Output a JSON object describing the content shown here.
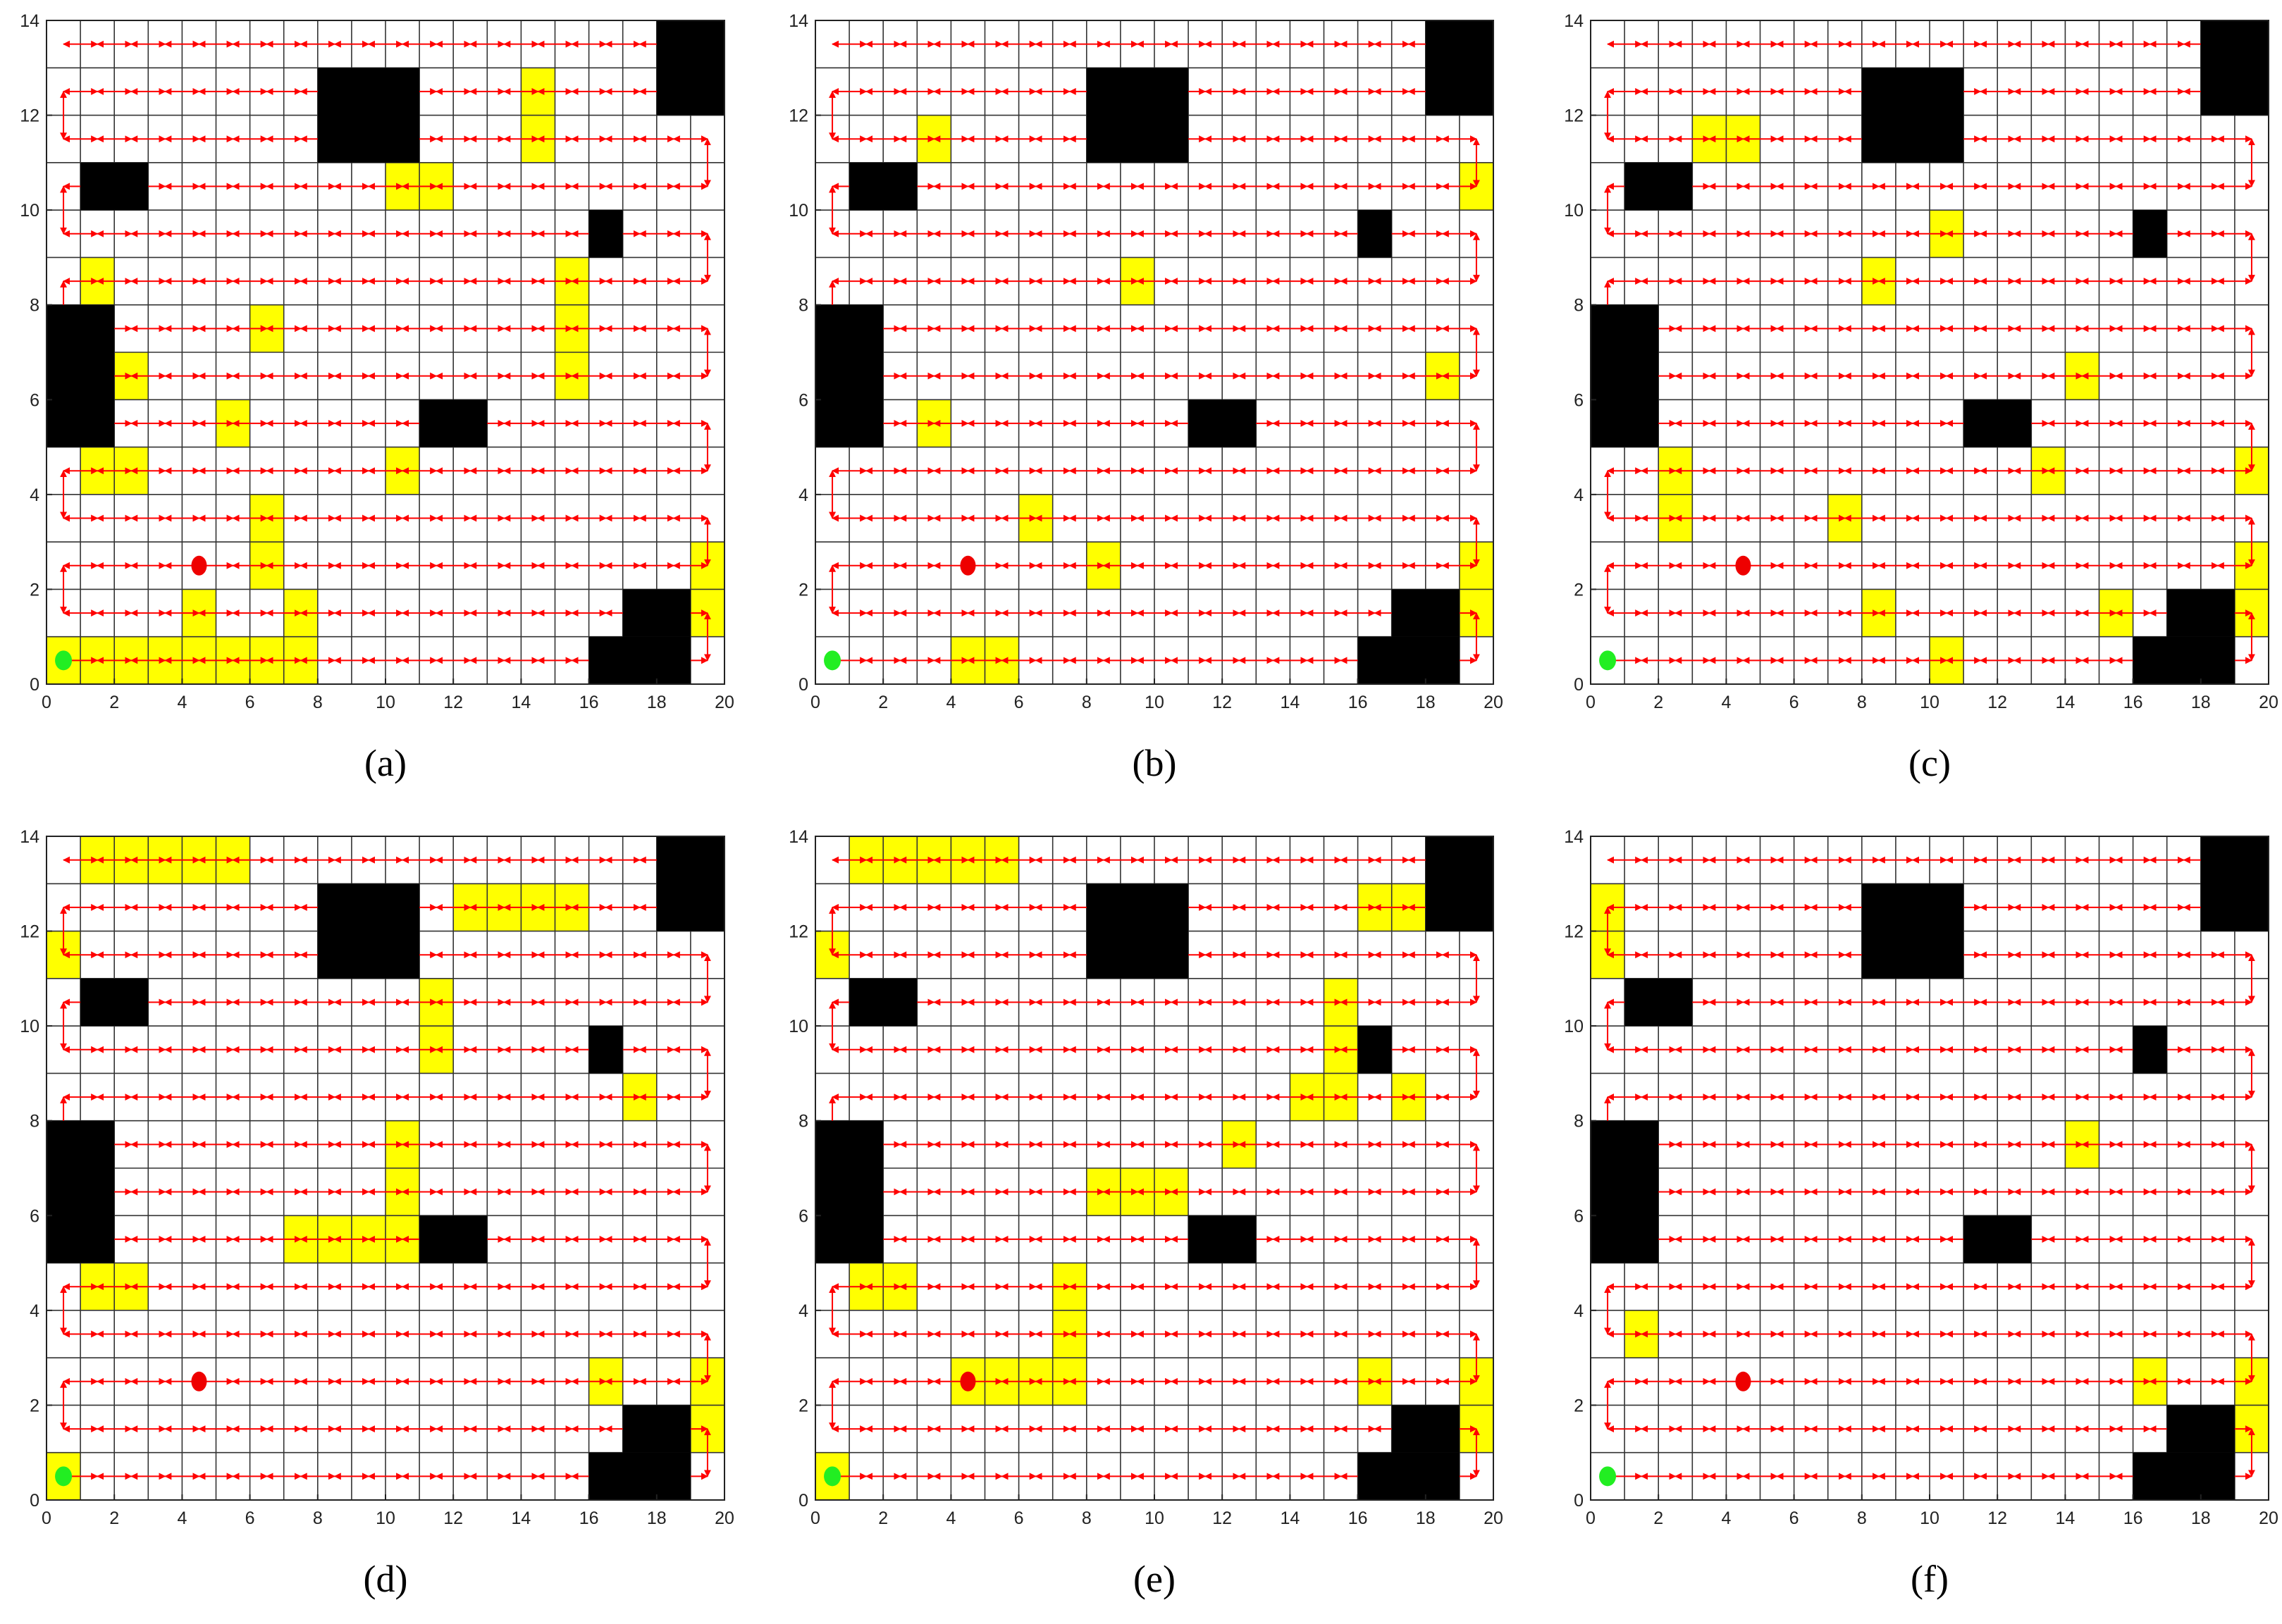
{
  "panels": [
    {
      "label": "(a)",
      "xlim": [
        0,
        20
      ],
      "ylim": [
        0,
        14
      ],
      "xticks": [
        0,
        2,
        4,
        6,
        8,
        10,
        12,
        14,
        16,
        18,
        20
      ],
      "yticks": [
        0,
        2,
        4,
        6,
        8,
        10,
        12,
        14
      ],
      "obstacles": [
        [
          8,
          11,
          11,
          13
        ],
        [
          18,
          12,
          20,
          14
        ],
        [
          1,
          10,
          3,
          11
        ],
        [
          16,
          9,
          17,
          10
        ],
        [
          0,
          5,
          2,
          8
        ],
        [
          11,
          5,
          13,
          6
        ],
        [
          16,
          0,
          19,
          1
        ],
        [
          17,
          1,
          19,
          2
        ]
      ],
      "highlighted": [
        [
          0,
          0
        ],
        [
          1,
          0
        ],
        [
          2,
          0
        ],
        [
          3,
          0
        ],
        [
          4,
          0
        ],
        [
          5,
          0
        ],
        [
          6,
          0
        ],
        [
          7,
          0
        ],
        [
          4,
          1
        ],
        [
          7,
          1
        ],
        [
          6,
          2
        ],
        [
          6,
          3
        ],
        [
          1,
          4
        ],
        [
          2,
          4
        ],
        [
          5,
          5
        ],
        [
          10,
          4
        ],
        [
          2,
          6
        ],
        [
          6,
          7
        ],
        [
          1,
          8
        ],
        [
          15,
          6
        ],
        [
          15,
          7
        ],
        [
          15,
          8
        ],
        [
          10,
          10
        ],
        [
          11,
          10
        ],
        [
          14,
          11
        ],
        [
          14,
          12
        ],
        [
          19,
          1
        ],
        [
          19,
          2
        ]
      ],
      "start": [
        0.5,
        0.5
      ],
      "goal": [
        4.5,
        2.5
      ]
    },
    {
      "label": "(b)",
      "xlim": [
        0,
        20
      ],
      "ylim": [
        0,
        14
      ],
      "xticks": [
        0,
        2,
        4,
        6,
        8,
        10,
        12,
        14,
        16,
        18,
        20
      ],
      "yticks": [
        0,
        2,
        4,
        6,
        8,
        10,
        12,
        14
      ],
      "obstacles": [
        [
          8,
          11,
          11,
          13
        ],
        [
          18,
          12,
          20,
          14
        ],
        [
          1,
          10,
          3,
          11
        ],
        [
          16,
          9,
          17,
          10
        ],
        [
          0,
          5,
          2,
          8
        ],
        [
          11,
          5,
          13,
          6
        ],
        [
          16,
          0,
          19,
          1
        ],
        [
          17,
          1,
          19,
          2
        ]
      ],
      "highlighted": [
        [
          4,
          0
        ],
        [
          5,
          0
        ],
        [
          8,
          2
        ],
        [
          6,
          3
        ],
        [
          3,
          5
        ],
        [
          18,
          6
        ],
        [
          9,
          8
        ],
        [
          3,
          11
        ],
        [
          19,
          10
        ],
        [
          19,
          1
        ],
        [
          19,
          2
        ]
      ],
      "start": [
        0.5,
        0.5
      ],
      "goal": [
        4.5,
        2.5
      ]
    },
    {
      "label": "(c)",
      "xlim": [
        0,
        20
      ],
      "ylim": [
        0,
        14
      ],
      "xticks": [
        0,
        2,
        4,
        6,
        8,
        10,
        12,
        14,
        16,
        18,
        20
      ],
      "yticks": [
        0,
        2,
        4,
        6,
        8,
        10,
        12,
        14
      ],
      "obstacles": [
        [
          8,
          11,
          11,
          13
        ],
        [
          18,
          12,
          20,
          14
        ],
        [
          1,
          10,
          3,
          11
        ],
        [
          16,
          9,
          17,
          10
        ],
        [
          0,
          5,
          2,
          8
        ],
        [
          11,
          5,
          13,
          6
        ],
        [
          16,
          0,
          19,
          1
        ],
        [
          17,
          1,
          19,
          2
        ]
      ],
      "highlighted": [
        [
          2,
          3
        ],
        [
          2,
          4
        ],
        [
          7,
          3
        ],
        [
          8,
          1
        ],
        [
          10,
          0
        ],
        [
          15,
          1
        ],
        [
          19,
          1
        ],
        [
          19,
          2
        ],
        [
          19,
          4
        ],
        [
          13,
          4
        ],
        [
          14,
          6
        ],
        [
          8,
          8
        ],
        [
          10,
          9
        ],
        [
          3,
          11
        ],
        [
          4,
          11
        ]
      ],
      "start": [
        0.5,
        0.5
      ],
      "goal": [
        4.5,
        2.5
      ]
    },
    {
      "label": "(d)",
      "xlim": [
        0,
        20
      ],
      "ylim": [
        0,
        14
      ],
      "xticks": [
        0,
        2,
        4,
        6,
        8,
        10,
        12,
        14,
        16,
        18,
        20
      ],
      "yticks": [
        0,
        2,
        4,
        6,
        8,
        10,
        12,
        14
      ],
      "obstacles": [
        [
          8,
          11,
          11,
          13
        ],
        [
          18,
          12,
          20,
          14
        ],
        [
          1,
          10,
          3,
          11
        ],
        [
          16,
          9,
          17,
          10
        ],
        [
          0,
          5,
          2,
          8
        ],
        [
          11,
          5,
          13,
          6
        ],
        [
          16,
          0,
          19,
          1
        ],
        [
          17,
          1,
          19,
          2
        ]
      ],
      "highlighted": [
        [
          0,
          0
        ],
        [
          1,
          4
        ],
        [
          2,
          4
        ],
        [
          7,
          5
        ],
        [
          8,
          5
        ],
        [
          9,
          5
        ],
        [
          10,
          5
        ],
        [
          10,
          6
        ],
        [
          10,
          7
        ],
        [
          11,
          9
        ],
        [
          11,
          10
        ],
        [
          17,
          8
        ],
        [
          0,
          11
        ],
        [
          12,
          12
        ],
        [
          13,
          12
        ],
        [
          14,
          12
        ],
        [
          15,
          12
        ],
        [
          1,
          13
        ],
        [
          2,
          13
        ],
        [
          3,
          13
        ],
        [
          4,
          13
        ],
        [
          5,
          13
        ],
        [
          16,
          2
        ],
        [
          19,
          2
        ],
        [
          19,
          1
        ]
      ],
      "start": [
        0.5,
        0.5
      ],
      "goal": [
        4.5,
        2.5
      ]
    },
    {
      "label": "(e)",
      "xlim": [
        0,
        20
      ],
      "ylim": [
        0,
        14
      ],
      "xticks": [
        0,
        2,
        4,
        6,
        8,
        10,
        12,
        14,
        16,
        18,
        20
      ],
      "yticks": [
        0,
        2,
        4,
        6,
        8,
        10,
        12,
        14
      ],
      "obstacles": [
        [
          8,
          11,
          11,
          13
        ],
        [
          18,
          12,
          20,
          14
        ],
        [
          1,
          10,
          3,
          11
        ],
        [
          16,
          9,
          17,
          10
        ],
        [
          0,
          5,
          2,
          8
        ],
        [
          11,
          5,
          13,
          6
        ],
        [
          16,
          0,
          19,
          1
        ],
        [
          17,
          1,
          19,
          2
        ]
      ],
      "highlighted": [
        [
          0,
          0
        ],
        [
          1,
          4
        ],
        [
          2,
          4
        ],
        [
          4,
          2
        ],
        [
          5,
          2
        ],
        [
          6,
          2
        ],
        [
          7,
          2
        ],
        [
          7,
          3
        ],
        [
          7,
          4
        ],
        [
          8,
          6
        ],
        [
          9,
          6
        ],
        [
          10,
          6
        ],
        [
          12,
          7
        ],
        [
          14,
          8
        ],
        [
          15,
          8
        ],
        [
          15,
          9
        ],
        [
          15,
          10
        ],
        [
          17,
          8
        ],
        [
          16,
          12
        ],
        [
          17,
          12
        ],
        [
          0,
          11
        ],
        [
          1,
          13
        ],
        [
          2,
          13
        ],
        [
          3,
          13
        ],
        [
          4,
          13
        ],
        [
          5,
          13
        ],
        [
          16,
          2
        ],
        [
          19,
          1
        ],
        [
          19,
          2
        ]
      ],
      "start": [
        0.5,
        0.5
      ],
      "goal": [
        4.5,
        2.5
      ]
    },
    {
      "label": "(f)",
      "xlim": [
        0,
        20
      ],
      "ylim": [
        0,
        14
      ],
      "xticks": [
        0,
        2,
        4,
        6,
        8,
        10,
        12,
        14,
        16,
        18,
        20
      ],
      "yticks": [
        0,
        2,
        4,
        6,
        8,
        10,
        12,
        14
      ],
      "obstacles": [
        [
          8,
          11,
          11,
          13
        ],
        [
          18,
          12,
          20,
          14
        ],
        [
          1,
          10,
          3,
          11
        ],
        [
          16,
          9,
          17,
          10
        ],
        [
          0,
          5,
          2,
          8
        ],
        [
          11,
          5,
          13,
          6
        ],
        [
          16,
          0,
          19,
          1
        ],
        [
          17,
          1,
          19,
          2
        ]
      ],
      "highlighted": [
        [
          0,
          11
        ],
        [
          0,
          12
        ],
        [
          1,
          3
        ],
        [
          14,
          7
        ],
        [
          16,
          2
        ],
        [
          19,
          1
        ],
        [
          19,
          2
        ]
      ],
      "start": [
        0.5,
        0.5
      ],
      "goal": [
        4.5,
        2.5
      ]
    }
  ]
}
